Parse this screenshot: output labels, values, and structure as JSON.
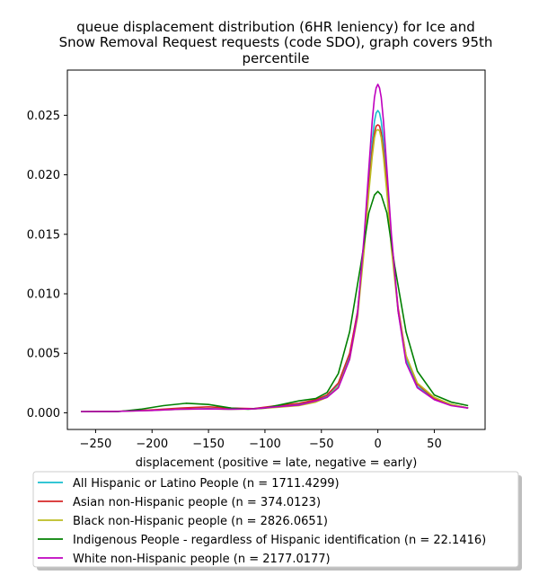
{
  "chart_data": {
    "type": "line",
    "title": "queue displacement distribution (6HR leniency) for Ice and Snow Removal Request  requests (code SDO), graph covers 95th percentile",
    "title_lines": [
      "queue displacement distribution (6HR leniency) for Ice and",
      "Snow Removal Request  requests (code SDO), graph covers 95th",
      "percentile"
    ],
    "xlabel": "displacement (positive = late, negative = early)",
    "ylabel": "",
    "xlim": [
      -275,
      95
    ],
    "ylim": [
      -0.0014,
      0.0288
    ],
    "xticks": [
      -250,
      -200,
      -150,
      -100,
      -50,
      0,
      50
    ],
    "xtick_labels": [
      "−250",
      "−200",
      "−150",
      "−100",
      "−50",
      "0",
      "50"
    ],
    "yticks": [
      0.0,
      0.005,
      0.01,
      0.015,
      0.02,
      0.025
    ],
    "ytick_labels": [
      "0.000",
      "0.005",
      "0.010",
      "0.015",
      "0.020",
      "0.025"
    ],
    "grid": false,
    "legend_position": "below",
    "series": [
      {
        "name": "All Hispanic or Latino People (n = 1711.4299)",
        "color": "#17becf",
        "x": [
          -263,
          -230,
          -200,
          -175,
          -150,
          -130,
          -110,
          -90,
          -70,
          -55,
          -45,
          -35,
          -25,
          -18,
          -12,
          -8,
          -5,
          -3,
          -1.5,
          0,
          1.5,
          3,
          5,
          8,
          12,
          18,
          25,
          35,
          50,
          65,
          80
        ],
        "y": [
          0.0001,
          0.00012,
          0.00022,
          0.0003,
          0.00035,
          0.0003,
          0.00035,
          0.00055,
          0.0007,
          0.001,
          0.0014,
          0.0024,
          0.0048,
          0.0085,
          0.0145,
          0.0195,
          0.0228,
          0.0245,
          0.0252,
          0.0254,
          0.0252,
          0.0245,
          0.0228,
          0.0195,
          0.0145,
          0.0085,
          0.0045,
          0.0022,
          0.0012,
          0.0007,
          0.0004
        ]
      },
      {
        "name": "Asian non-Hispanic people (n = 374.0123)",
        "color": "#d62728",
        "x": [
          -263,
          -230,
          -200,
          -175,
          -150,
          -130,
          -110,
          -90,
          -70,
          -55,
          -45,
          -35,
          -25,
          -18,
          -12,
          -8,
          -5,
          -3,
          -1.5,
          0,
          1.5,
          3,
          5,
          8,
          12,
          18,
          25,
          35,
          50,
          65,
          80
        ],
        "y": [
          0.0001,
          0.00013,
          0.00025,
          0.0004,
          0.0005,
          0.0004,
          0.00035,
          0.0006,
          0.0008,
          0.0011,
          0.0015,
          0.0025,
          0.005,
          0.0085,
          0.0143,
          0.019,
          0.022,
          0.0235,
          0.0241,
          0.0242,
          0.0241,
          0.0235,
          0.022,
          0.019,
          0.0143,
          0.0088,
          0.0048,
          0.0024,
          0.0012,
          0.0007,
          0.0004
        ]
      },
      {
        "name": "Black non-Hispanic people (n = 2826.0651)",
        "color": "#bcbd22",
        "x": [
          -263,
          -230,
          -200,
          -175,
          -150,
          -130,
          -110,
          -90,
          -70,
          -55,
          -45,
          -35,
          -25,
          -18,
          -12,
          -8,
          -5,
          -3,
          -1.5,
          0,
          1.5,
          3,
          5,
          8,
          12,
          18,
          25,
          35,
          50,
          65,
          80
        ],
        "y": [
          0.0001,
          0.00012,
          0.0002,
          0.0003,
          0.00033,
          0.0003,
          0.00032,
          0.00045,
          0.0006,
          0.0009,
          0.0013,
          0.0022,
          0.0045,
          0.008,
          0.0138,
          0.0185,
          0.0215,
          0.0231,
          0.0237,
          0.0238,
          0.0237,
          0.0231,
          0.0215,
          0.0185,
          0.0138,
          0.0085,
          0.0048,
          0.0025,
          0.0013,
          0.0007,
          0.0004
        ]
      },
      {
        "name": "Indigenous People - regardless of Hispanic identification (n = 22.1416)",
        "color": "#008000",
        "x": [
          -263,
          -230,
          -210,
          -190,
          -170,
          -150,
          -130,
          -115,
          -100,
          -85,
          -70,
          -55,
          -45,
          -35,
          -25,
          -15,
          -8,
          -3,
          0,
          3,
          8,
          15,
          25,
          35,
          50,
          65,
          80
        ],
        "y": [
          0.0001,
          0.0001,
          0.0003,
          0.0006,
          0.0008,
          0.0007,
          0.0004,
          0.0003,
          0.0004,
          0.0007,
          0.001,
          0.0012,
          0.0017,
          0.0033,
          0.0068,
          0.0125,
          0.0168,
          0.0183,
          0.0186,
          0.0183,
          0.0168,
          0.0123,
          0.0068,
          0.0035,
          0.0015,
          0.0009,
          0.0006
        ]
      },
      {
        "name": "White non-Hispanic people (n = 2177.0177)",
        "color": "#bf00bf",
        "x": [
          -263,
          -230,
          -200,
          -175,
          -150,
          -130,
          -110,
          -90,
          -70,
          -55,
          -45,
          -35,
          -25,
          -18,
          -12,
          -8,
          -5,
          -3,
          -1.5,
          0,
          1.5,
          3,
          5,
          8,
          12,
          18,
          25,
          35,
          50,
          65,
          80
        ],
        "y": [
          0.0001,
          0.00012,
          0.0002,
          0.0003,
          0.00033,
          0.0003,
          0.00033,
          0.0005,
          0.00065,
          0.001,
          0.0013,
          0.0021,
          0.0045,
          0.0083,
          0.015,
          0.0205,
          0.0245,
          0.0265,
          0.0273,
          0.0276,
          0.0273,
          0.0265,
          0.0245,
          0.0205,
          0.015,
          0.0085,
          0.0042,
          0.0021,
          0.0011,
          0.0006,
          0.0004
        ]
      }
    ]
  }
}
